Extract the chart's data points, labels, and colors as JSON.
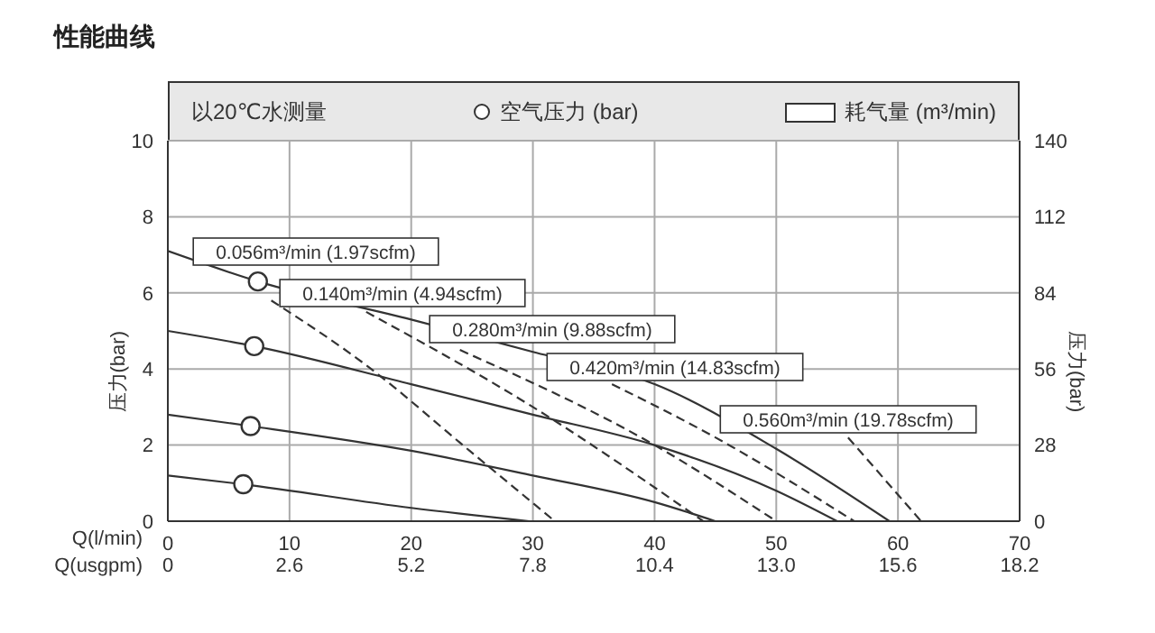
{
  "chart_data": {
    "type": "line",
    "title": "性能曲线",
    "xlabel": "Q(l/min)",
    "x2label": "Q(usgpm)",
    "ylabel": "压力(bar)",
    "y2label": "压力(bar)",
    "xlim": [
      0,
      70
    ],
    "xticks": [
      0,
      10,
      20,
      30,
      40,
      50,
      60,
      70
    ],
    "x2lim": [
      0,
      18.2
    ],
    "x2ticks": [
      0,
      2.6,
      5.2,
      7.8,
      10.4,
      {
        "value": 13,
        "label": "13.0"
      },
      15.6,
      18.2
    ],
    "ylim": [
      0,
      10
    ],
    "yticks": [
      0,
      2,
      4,
      6,
      8,
      10
    ],
    "y2lim": [
      0,
      140
    ],
    "y2ticks": [
      0,
      28,
      56,
      84,
      112,
      140
    ],
    "grid": true,
    "legend": "top",
    "marker": "none",
    "line_style": "solid",
    "annotations": [
      "以20℃水测量",
      "耗气量 (m³/min)",
      "0.056m³/min (1.97scfm)",
      "0.140m³/min (4.94scfm)",
      "0.280m³/min (9.88scfm)",
      "0.420m³/min (14.83scfm)",
      "0.560m³/min (19.78scfm)"
    ],
    "series": [
      {
        "color": "#333333",
        "x": [
          0,
          7.4,
          20,
          30,
          40,
          50,
          59.3
        ],
        "values": [
          7.1,
          6.3,
          5.3,
          4.45,
          3.6,
          1.9,
          0
        ]
      },
      {
        "color": "#333333",
        "x": [
          0,
          7.1,
          20,
          30,
          40,
          50,
          55
        ],
        "values": [
          5.0,
          4.6,
          3.6,
          2.8,
          2.0,
          0.8,
          0
        ]
      },
      {
        "color": "#333333",
        "x": [
          0,
          6.8,
          20,
          30,
          40,
          45
        ],
        "values": [
          2.8,
          2.5,
          1.85,
          1.2,
          0.5,
          0
        ]
      },
      {
        "color": "#333333",
        "x": [
          0,
          6.2,
          20,
          29.7
        ],
        "values": [
          1.2,
          0.97,
          0.35,
          0
        ]
      },
      {
        "color": "#333333",
        "line_style": "dashed",
        "x": [
          8.5,
          16.3,
          24.8,
          31.8
        ],
        "values": [
          5.8,
          4.1,
          1.85,
          0
        ]
      },
      {
        "color": "#333333",
        "line_style": "dashed",
        "x": [
          16.3,
          30,
          44
        ],
        "values": [
          5.5,
          3.0,
          0
        ]
      },
      {
        "color": "#333333",
        "line_style": "dashed",
        "x": [
          24,
          40,
          50
        ],
        "values": [
          4.5,
          2.0,
          0
        ]
      },
      {
        "color": "#333333",
        "line_style": "dashed",
        "x": [
          36.5,
          45,
          56.4
        ],
        "values": [
          3.6,
          2.2,
          0
        ]
      },
      {
        "color": "#333333",
        "line_style": "dashed",
        "x": [
          55.9,
          61.9
        ],
        "values": [
          2.2,
          0
        ]
      },
      {
        "type": "scatter",
        "name": "空气压力 (bar)",
        "color": "#333333",
        "marker": "circle",
        "x": [
          7.4,
          7.1,
          6.8,
          6.2
        ],
        "values": [
          6.3,
          4.6,
          2.5,
          0.97
        ]
      }
    ]
  }
}
